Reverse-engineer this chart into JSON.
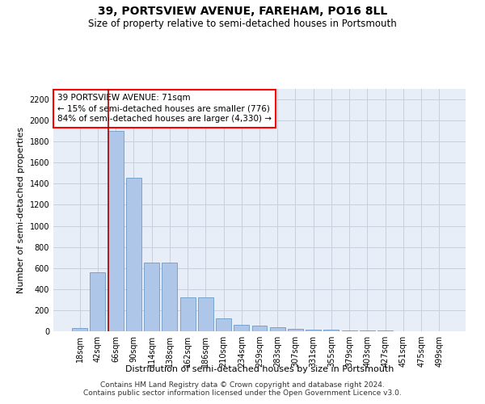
{
  "title": "39, PORTSVIEW AVENUE, FAREHAM, PO16 8LL",
  "subtitle": "Size of property relative to semi-detached houses in Portsmouth",
  "xlabel": "Distribution of semi-detached houses by size in Portsmouth",
  "ylabel": "Number of semi-detached properties",
  "footnote1": "Contains HM Land Registry data © Crown copyright and database right 2024.",
  "footnote2": "Contains public sector information licensed under the Open Government Licence v3.0.",
  "bar_labels": [
    "18sqm",
    "42sqm",
    "66sqm",
    "90sqm",
    "114sqm",
    "138sqm",
    "162sqm",
    "186sqm",
    "210sqm",
    "234sqm",
    "259sqm",
    "283sqm",
    "307sqm",
    "331sqm",
    "355sqm",
    "379sqm",
    "403sqm",
    "427sqm",
    "451sqm",
    "475sqm",
    "499sqm"
  ],
  "bar_values": [
    30,
    560,
    1900,
    1460,
    650,
    650,
    320,
    320,
    120,
    65,
    50,
    40,
    25,
    18,
    15,
    10,
    8,
    5,
    3,
    2,
    1
  ],
  "bar_color": "#aec6e8",
  "bar_edge_color": "#5a8fc0",
  "annotation_box_text": "39 PORTSVIEW AVENUE: 71sqm\n← 15% of semi-detached houses are smaller (776)\n84% of semi-detached houses are larger (4,330) →",
  "vline_x": 1.575,
  "vline_color": "#aa0000",
  "ylim": [
    0,
    2300
  ],
  "yticks": [
    0,
    200,
    400,
    600,
    800,
    1000,
    1200,
    1400,
    1600,
    1800,
    2000,
    2200
  ],
  "grid_color": "#c8d0de",
  "background_color": "#e8eef8",
  "title_fontsize": 10,
  "subtitle_fontsize": 8.5,
  "axis_label_fontsize": 8,
  "tick_fontsize": 7,
  "annotation_fontsize": 7.5,
  "footnote_fontsize": 6.5
}
